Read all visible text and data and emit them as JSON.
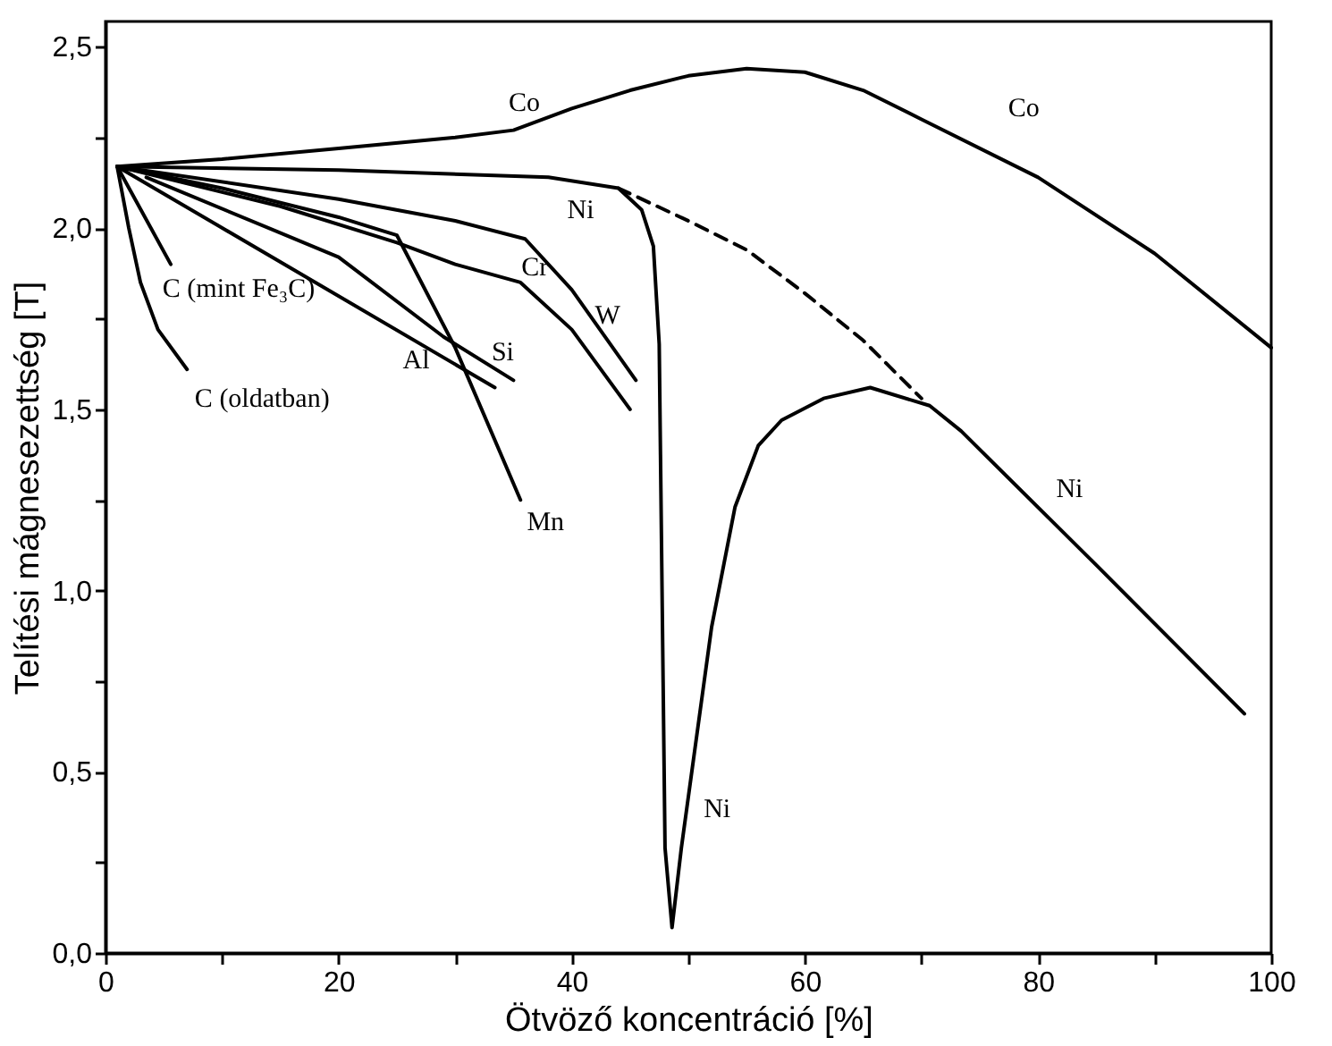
{
  "chart_data": {
    "type": "line",
    "xlabel": "Ötvöző koncentráció [%]",
    "ylabel": "Telítési mágnesezettség [T]",
    "xlim": [
      0,
      100
    ],
    "ylim": [
      0,
      2.57
    ],
    "xticks": [
      0,
      {
        "value": 10,
        "label": null
      },
      20,
      {
        "value": 30,
        "label": null
      },
      40,
      {
        "value": 50,
        "label": null
      },
      60,
      {
        "value": 70,
        "label": null
      },
      80,
      {
        "value": 90,
        "label": null
      },
      100
    ],
    "yticks": [
      {
        "value": 0,
        "label": "0,0"
      },
      {
        "value": 0.25,
        "label": null
      },
      {
        "value": 0.5,
        "label": "0,5"
      },
      {
        "value": 0.75,
        "label": null
      },
      {
        "value": 1,
        "label": "1,0"
      },
      {
        "value": 1.25,
        "label": null
      },
      {
        "value": 1.5,
        "label": "1,5"
      },
      {
        "value": 1.75,
        "label": null
      },
      {
        "value": 2,
        "label": "2,0"
      },
      {
        "value": 2.25,
        "label": null
      },
      {
        "value": 2.5,
        "label": "2,5"
      }
    ],
    "grid": false,
    "marker": "none",
    "line_style": "solid",
    "series": [
      {
        "name": "Co",
        "color": "#000000",
        "x": [
          1,
          10,
          20,
          30,
          35,
          40,
          45,
          50,
          55,
          60,
          65,
          70,
          80,
          90,
          100
        ],
        "values": [
          2.17,
          2.19,
          2.22,
          2.25,
          2.27,
          2.33,
          2.38,
          2.42,
          2.44,
          2.43,
          2.38,
          2.3,
          2.14,
          1.93,
          1.67
        ]
      },
      {
        "name": "Ni",
        "color": "#000000",
        "x": [
          1,
          20,
          38,
          44,
          46,
          47,
          47.5,
          48,
          48.6,
          49.4,
          52,
          54,
          56,
          58,
          61.6,
          65.6,
          70.7,
          73.4,
          85,
          97.7
        ],
        "values": [
          2.17,
          2.16,
          2.14,
          2.11,
          2.05,
          1.95,
          1.68,
          0.29,
          0.07,
          0.29,
          0.9,
          1.23,
          1.4,
          1.47,
          1.53,
          1.56,
          1.51,
          1.44,
          1.07,
          0.66
        ]
      },
      {
        "color": "#000000",
        "line_style": "dashed",
        "x": [
          44,
          50,
          55,
          60,
          65,
          70
        ],
        "values": [
          2.11,
          2.02,
          1.94,
          1.82,
          1.69,
          1.53
        ]
      },
      {
        "name": "W",
        "color": "#000000",
        "x": [
          1,
          20,
          30,
          36,
          40,
          45.5
        ],
        "values": [
          2.17,
          2.08,
          2.02,
          1.97,
          1.83,
          1.58
        ]
      },
      {
        "name": "Cr",
        "color": "#000000",
        "x": [
          1,
          15,
          25,
          30,
          35.6,
          40,
          45
        ],
        "values": [
          2.17,
          2.06,
          1.96,
          1.9,
          1.85,
          1.72,
          1.5
        ]
      },
      {
        "name": "Mn",
        "color": "#000000",
        "x": [
          1,
          10,
          20,
          25,
          30,
          35.6
        ],
        "values": [
          2.17,
          2.11,
          2.03,
          1.98,
          1.67,
          1.25
        ]
      },
      {
        "name": "Al",
        "color": "#000000",
        "x": [
          1,
          33.4
        ],
        "values": [
          2.17,
          1.56
        ]
      },
      {
        "name": "Si",
        "color": "#000000",
        "x": [
          3.5,
          20,
          29,
          35
        ],
        "values": [
          2.14,
          1.92,
          1.7,
          1.58
        ]
      },
      {
        "name": "C (mint Fe₃C)",
        "color": "#000000",
        "x": [
          1,
          5.6
        ],
        "values": [
          2.17,
          1.9
        ]
      },
      {
        "name": "C (oldatban)",
        "color": "#000000",
        "x": [
          1,
          2,
          3,
          4.5,
          7
        ],
        "values": [
          2.17,
          2.0,
          1.85,
          1.72,
          1.61
        ]
      }
    ]
  }
}
